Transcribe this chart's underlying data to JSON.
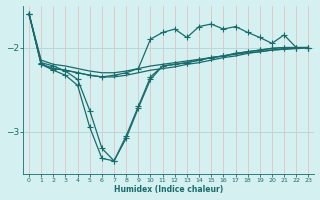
{
  "xlabel": "Humidex (Indice chaleur)",
  "background_color": "#d4f0f0",
  "line_color": "#1a6b6b",
  "grid_color_v": "#e8b8b8",
  "grid_color_h": "#b8d8d8",
  "xlim": [
    -0.5,
    23.5
  ],
  "ylim": [
    -3.5,
    -1.5
  ],
  "yticks": [
    -3,
    -2
  ],
  "xticks": [
    0,
    1,
    2,
    3,
    4,
    5,
    6,
    7,
    8,
    9,
    10,
    11,
    12,
    13,
    14,
    15,
    16,
    17,
    18,
    19,
    20,
    21,
    22,
    23
  ],
  "series": [
    {
      "x": [
        0,
        1,
        2,
        3,
        4,
        5,
        6,
        7,
        8,
        9,
        10,
        11,
        12,
        13,
        14,
        15,
        16,
        17,
        18,
        19,
        20,
        21,
        22,
        23
      ],
      "y": [
        -1.6,
        -2.15,
        -2.2,
        -2.22,
        -2.25,
        -2.28,
        -2.3,
        -2.3,
        -2.28,
        -2.25,
        -2.22,
        -2.2,
        -2.18,
        -2.16,
        -2.14,
        -2.12,
        -2.1,
        -2.08,
        -2.06,
        -2.05,
        -2.03,
        -2.02,
        -2.01,
        -2.0
      ],
      "marker": null,
      "ms": 0,
      "lw": 0.9
    },
    {
      "x": [
        0,
        1,
        2,
        3,
        4,
        5,
        6,
        7,
        8,
        9,
        10,
        11,
        12,
        13,
        14,
        15,
        16,
        17,
        18,
        19,
        20,
        21,
        22,
        23
      ],
      "y": [
        -1.6,
        -2.2,
        -2.25,
        -2.27,
        -2.3,
        -2.33,
        -2.35,
        -2.35,
        -2.33,
        -2.3,
        -2.27,
        -2.25,
        -2.23,
        -2.2,
        -2.18,
        -2.15,
        -2.12,
        -2.1,
        -2.07,
        -2.05,
        -2.03,
        -2.02,
        -2.01,
        -2.0
      ],
      "marker": null,
      "ms": 0,
      "lw": 0.9
    },
    {
      "x": [
        0,
        1,
        2,
        3,
        4,
        5,
        6,
        7,
        8,
        9,
        10,
        11,
        12,
        13,
        14,
        15,
        16,
        17,
        18,
        19,
        20,
        21,
        22,
        23
      ],
      "y": [
        -1.6,
        -2.2,
        -2.27,
        -2.33,
        -2.45,
        -2.95,
        -3.32,
        -3.35,
        -3.05,
        -2.7,
        -2.35,
        -2.22,
        -2.2,
        -2.18,
        -2.15,
        -2.12,
        -2.1,
        -2.07,
        -2.05,
        -2.03,
        -2.01,
        -2.0,
        -2.0,
        -2.0
      ],
      "marker": "+",
      "ms": 4,
      "lw": 0.9
    },
    {
      "x": [
        0,
        1,
        2,
        3,
        4,
        5,
        6,
        7,
        8,
        9,
        10,
        11,
        12,
        13,
        14,
        15,
        16,
        17,
        18,
        19,
        20,
        21,
        22,
        23
      ],
      "y": [
        -1.6,
        -2.18,
        -2.22,
        -2.28,
        -2.38,
        -2.75,
        -3.2,
        -3.35,
        -3.08,
        -2.72,
        -2.38,
        -2.22,
        -2.2,
        -2.18,
        -2.15,
        -2.12,
        -2.1,
        -2.07,
        -2.05,
        -2.03,
        -2.01,
        -2.0,
        -2.0,
        -2.0
      ],
      "marker": "+",
      "ms": 4,
      "lw": 0.9
    },
    {
      "x": [
        0,
        1,
        2,
        3,
        4,
        5,
        6,
        7,
        8,
        9,
        10,
        11,
        12,
        13,
        14,
        15,
        16,
        17,
        18,
        19,
        20,
        21,
        22,
        23
      ],
      "y": [
        -1.6,
        -2.2,
        -2.25,
        -2.27,
        -2.3,
        -2.33,
        -2.35,
        -2.33,
        -2.3,
        -2.25,
        -1.9,
        -1.82,
        -1.78,
        -1.88,
        -1.75,
        -1.72,
        -1.78,
        -1.75,
        -1.82,
        -1.88,
        -1.95,
        -1.85,
        -2.0,
        -2.0
      ],
      "marker": "+",
      "ms": 4,
      "lw": 0.9
    }
  ]
}
